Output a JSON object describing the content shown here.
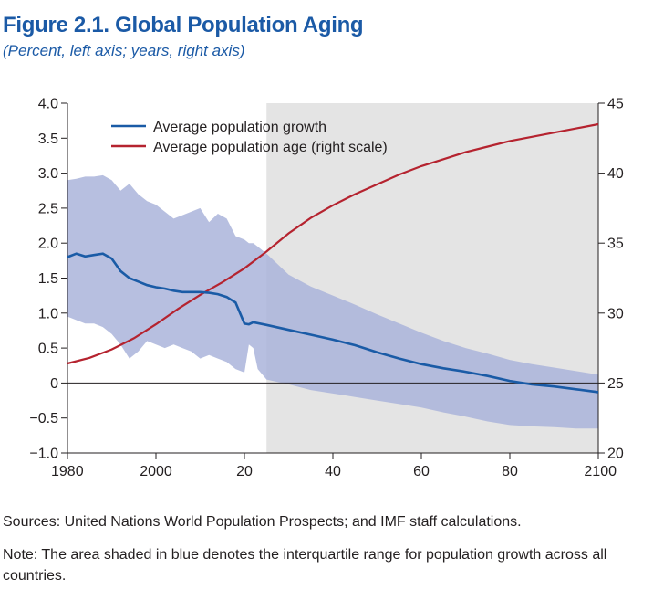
{
  "figure": {
    "title": "Figure 2.1.  Global Population Aging",
    "subtitle": "(Percent, left axis; years, right axis)"
  },
  "footer": {
    "sources": "Sources: United Nations World Population Prospects; and IMF staff calculations.",
    "note": "Note: The area shaded in blue denotes the interquartile range for population growth across all countries."
  },
  "colors": {
    "growth_line": "#1a5ba6",
    "age_line": "#b5232f",
    "iqr_band": "#aab4db",
    "projection_shade": "#e4e4e4"
  },
  "chart_data": {
    "type": "line",
    "x_tick_labels": [
      "1980",
      "2000",
      "20",
      "40",
      "60",
      "80",
      "2100"
    ],
    "x_tick_values": [
      1980,
      2000,
      2020,
      2040,
      2060,
      2080,
      2100
    ],
    "xlim": [
      1980,
      2100
    ],
    "y_left_tick_labels": [
      "4.0",
      "3.5",
      "3.0",
      "2.5",
      "2.0",
      "1.5",
      "1.0",
      "0.5",
      "0",
      "−0.5",
      "−1.0"
    ],
    "y_left_tick_values": [
      4.0,
      3.5,
      3.0,
      2.5,
      2.0,
      1.5,
      1.0,
      0.5,
      0,
      -0.5,
      -1.0
    ],
    "ylim_left": [
      -1.0,
      4.0
    ],
    "y_right_tick_labels": [
      "45",
      "40",
      "35",
      "30",
      "25",
      "20"
    ],
    "y_right_tick_values": [
      45,
      40,
      35,
      30,
      25,
      20
    ],
    "ylim_right": [
      20,
      45
    ],
    "shaded_region": {
      "x_start": 2025,
      "x_end": 2100
    },
    "zero_line": true,
    "legend_position": "top-left",
    "series": [
      {
        "name": "Average population growth",
        "axis": "left",
        "style": "line",
        "x": [
          1980,
          1982,
          1984,
          1986,
          1988,
          1990,
          1992,
          1994,
          1996,
          1998,
          2000,
          2002,
          2004,
          2006,
          2008,
          2010,
          2012,
          2014,
          2016,
          2018,
          2020,
          2021,
          2022,
          2025,
          2030,
          2035,
          2040,
          2045,
          2050,
          2055,
          2060,
          2065,
          2070,
          2075,
          2080,
          2085,
          2090,
          2095,
          2100
        ],
        "y": [
          1.8,
          1.85,
          1.81,
          1.83,
          1.85,
          1.78,
          1.6,
          1.5,
          1.45,
          1.4,
          1.37,
          1.35,
          1.32,
          1.3,
          1.3,
          1.3,
          1.29,
          1.27,
          1.23,
          1.15,
          0.85,
          0.84,
          0.87,
          0.83,
          0.76,
          0.69,
          0.62,
          0.54,
          0.44,
          0.35,
          0.27,
          0.21,
          0.16,
          0.1,
          0.03,
          -0.02,
          -0.05,
          -0.09,
          -0.13
        ]
      },
      {
        "name": "Average population age (right scale)",
        "axis": "right",
        "style": "line",
        "x": [
          1980,
          1985,
          1990,
          1995,
          2000,
          2005,
          2010,
          2015,
          2020,
          2025,
          2030,
          2035,
          2040,
          2045,
          2050,
          2055,
          2060,
          2065,
          2070,
          2075,
          2080,
          2085,
          2090,
          2095,
          2100
        ],
        "y": [
          26.4,
          26.8,
          27.4,
          28.2,
          29.2,
          30.3,
          31.3,
          32.2,
          33.2,
          34.4,
          35.7,
          36.8,
          37.7,
          38.5,
          39.2,
          39.9,
          40.5,
          41.0,
          41.5,
          41.9,
          42.3,
          42.6,
          42.9,
          43.2,
          43.5
        ]
      },
      {
        "name": "Interquartile range",
        "axis": "left",
        "style": "band",
        "x": [
          1980,
          1982,
          1984,
          1986,
          1988,
          1990,
          1992,
          1994,
          1996,
          1998,
          2000,
          2002,
          2004,
          2006,
          2008,
          2010,
          2012,
          2014,
          2016,
          2018,
          2020,
          2021,
          2022,
          2023,
          2025,
          2030,
          2035,
          2040,
          2045,
          2050,
          2055,
          2060,
          2065,
          2070,
          2075,
          2080,
          2085,
          2090,
          2095,
          2100
        ],
        "upper": [
          2.9,
          2.92,
          2.95,
          2.95,
          2.97,
          2.9,
          2.75,
          2.85,
          2.7,
          2.6,
          2.55,
          2.45,
          2.35,
          2.4,
          2.45,
          2.5,
          2.3,
          2.42,
          2.35,
          2.1,
          2.05,
          2.0,
          2.0,
          1.95,
          1.85,
          1.55,
          1.38,
          1.25,
          1.12,
          0.98,
          0.85,
          0.72,
          0.6,
          0.5,
          0.42,
          0.33,
          0.27,
          0.22,
          0.17,
          0.12
        ],
        "lower": [
          0.95,
          0.9,
          0.85,
          0.85,
          0.8,
          0.7,
          0.55,
          0.35,
          0.45,
          0.6,
          0.55,
          0.5,
          0.55,
          0.5,
          0.45,
          0.35,
          0.4,
          0.35,
          0.3,
          0.2,
          0.15,
          0.55,
          0.5,
          0.2,
          0.05,
          -0.02,
          -0.1,
          -0.15,
          -0.2,
          -0.25,
          -0.3,
          -0.35,
          -0.42,
          -0.48,
          -0.55,
          -0.6,
          -0.62,
          -0.63,
          -0.65,
          -0.65
        ]
      }
    ]
  }
}
